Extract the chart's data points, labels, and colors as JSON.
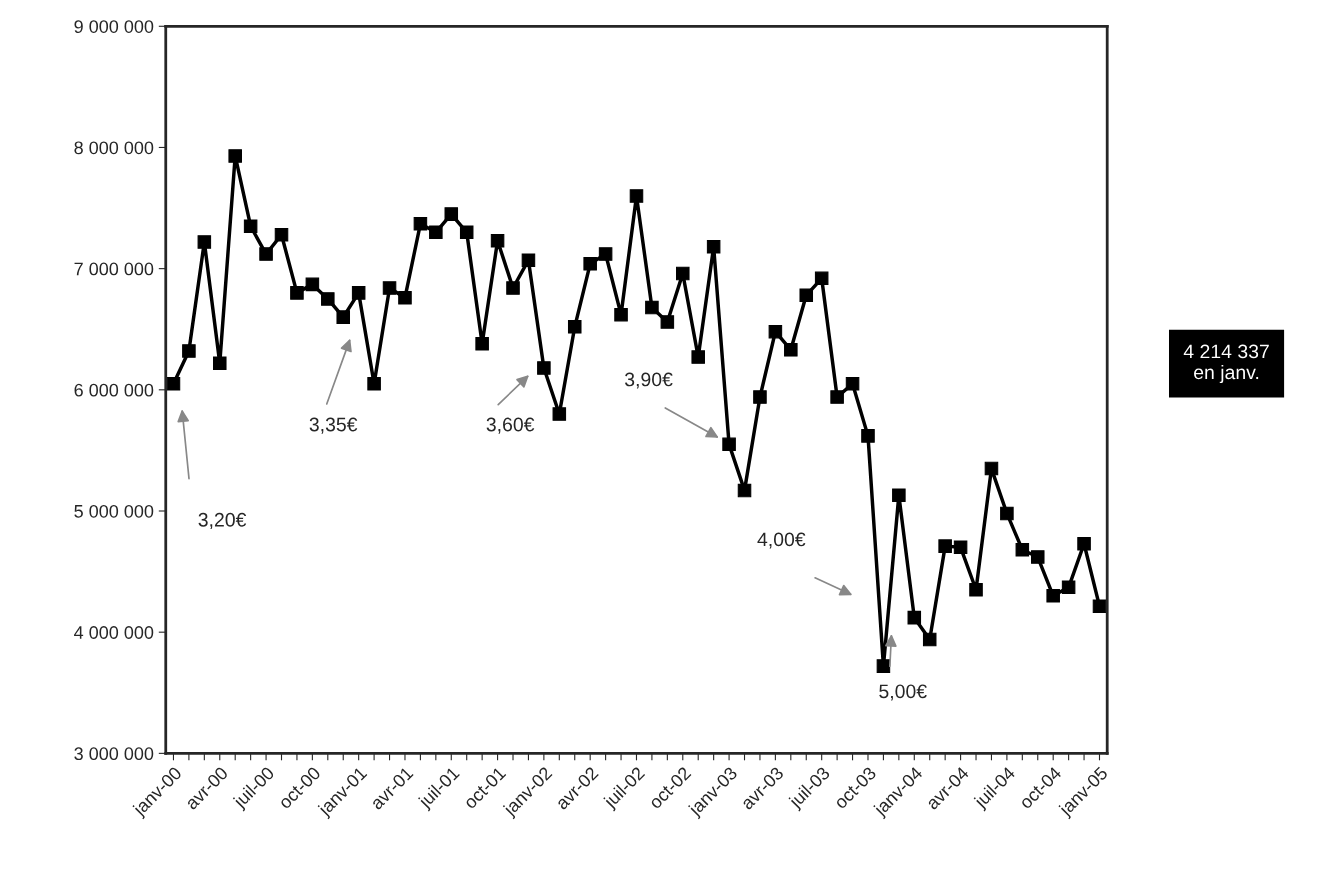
{
  "chart_data": {
    "type": "line",
    "categories": [
      "janv-00",
      null,
      null,
      "avr-00",
      null,
      null,
      "juil-00",
      null,
      null,
      "oct-00",
      null,
      null,
      "janv-01",
      null,
      null,
      "avr-01",
      null,
      null,
      "juil-01",
      null,
      null,
      "oct-01",
      null,
      null,
      "janv-02",
      null,
      null,
      "avr-02",
      null,
      null,
      "juil-02",
      null,
      null,
      "oct-02",
      null,
      null,
      "janv-03",
      null,
      null,
      "avr-03",
      null,
      null,
      "juil-03",
      null,
      null,
      "oct-03",
      null,
      null,
      "janv-04",
      null,
      null,
      "avr-04",
      null,
      null,
      "juil-04",
      null,
      null,
      "oct-04",
      null,
      null,
      "janv-05"
    ],
    "series": [
      {
        "color": "#000000",
        "values": [
          6050000,
          6320000,
          7220000,
          6220000,
          7930000,
          7350000,
          7120000,
          7280000,
          6800000,
          6870000,
          6750000,
          6600000,
          6800000,
          6050000,
          6840000,
          6760000,
          7370000,
          7300000,
          7450000,
          7300000,
          6380000,
          7230000,
          6840000,
          7070000,
          6180000,
          5800000,
          6520000,
          7040000,
          7120000,
          6620000,
          7600000,
          6680000,
          6560000,
          6960000,
          6270000,
          7180000,
          5550000,
          5170000,
          5940000,
          6480000,
          6330000,
          6780000,
          6920000,
          5940000,
          6050000,
          5620000,
          3720000,
          5130000,
          4120000,
          3940000,
          4710000,
          4700000,
          4350000,
          5350000,
          4980000,
          4680000,
          4620000,
          4300000,
          4370000,
          4730000,
          4214337
        ]
      }
    ],
    "ylim": [
      3000000,
      9000000
    ],
    "yticks": [
      {
        "value": 3000000,
        "label": "3 000 000"
      },
      {
        "value": 4000000,
        "label": "4 000 000"
      },
      {
        "value": 5000000,
        "label": "5 000 000"
      },
      {
        "value": 6000000,
        "label": "6 000 000"
      },
      {
        "value": 7000000,
        "label": "7 000 000"
      },
      {
        "value": 8000000,
        "label": "8 000 000"
      },
      {
        "value": 9000000,
        "label": "9 000 000"
      }
    ],
    "marker": "square",
    "grid": false,
    "legend": false,
    "annotations": [
      "3,20€",
      "3,35€",
      "3,60€",
      "3,90€",
      "4,00€",
      "5,00€",
      "4 214 337\nen janv."
    ]
  }
}
